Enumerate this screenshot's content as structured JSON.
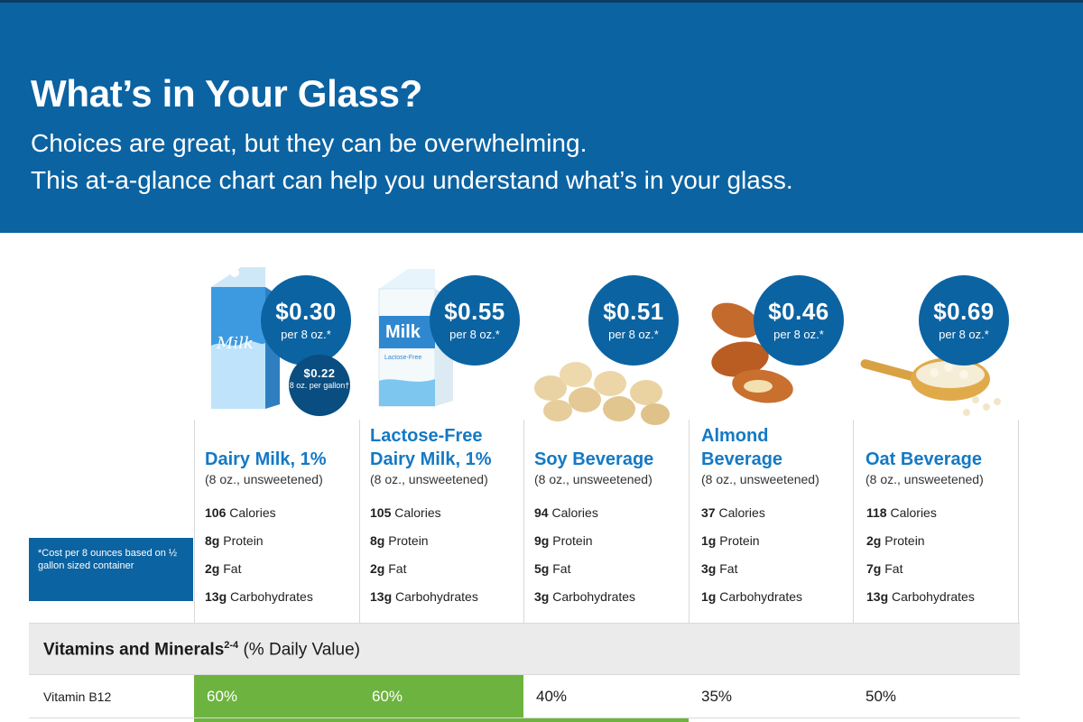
{
  "header": {
    "title": "What’s in Your Glass?",
    "subtitle_line1": "Choices are great, but they can be overwhelming.",
    "subtitle_line2": "This at-a-glance chart can help you understand what’s in your glass."
  },
  "cost_note": "*Cost per 8 ounces based on ½ gallon sized container",
  "colors": {
    "brand_blue": "#0b63a2",
    "highlight_green": "#6db33f",
    "name_blue": "#1479c4"
  },
  "columns": [
    {
      "name_line1": "Dairy Milk, 1%",
      "name_line2": "",
      "serving": "(8 oz., unsweetened)",
      "price": "$0.30",
      "per": "per 8 oz.*",
      "extra_price": "$0.22",
      "extra_per": "8 oz. per gallon†",
      "calories": "106",
      "protein": "8g",
      "fat": "2g",
      "carbs": "13g",
      "icon": "milk-carton-icon"
    },
    {
      "name_line1": "Lactose-Free",
      "name_line2": "Dairy Milk, 1%",
      "serving": "(8 oz., unsweetened)",
      "price": "$0.55",
      "per": "per 8 oz.*",
      "calories": "105",
      "protein": "8g",
      "fat": "2g",
      "carbs": "13g",
      "icon": "lactose-free-carton-icon"
    },
    {
      "name_line1": "Soy Beverage",
      "name_line2": "",
      "serving": "(8 oz., unsweetened)",
      "price": "$0.51",
      "per": "per 8 oz.*",
      "calories": "94",
      "protein": "9g",
      "fat": "5g",
      "carbs": "3g",
      "icon": "soybeans-icon"
    },
    {
      "name_line1": "Almond",
      "name_line2": "Beverage",
      "serving": "(8 oz., unsweetened)",
      "price": "$0.46",
      "per": "per 8 oz.*",
      "calories": "37",
      "protein": "1g",
      "fat": "3g",
      "carbs": "1g",
      "icon": "almonds-icon"
    },
    {
      "name_line1": "Oat Beverage",
      "name_line2": "",
      "serving": "(8 oz., unsweetened)",
      "price": "$0.69",
      "per": "per 8 oz.*",
      "calories": "118",
      "protein": "2g",
      "fat": "7g",
      "carbs": "13g",
      "icon": "oats-scoop-icon"
    }
  ],
  "labels": {
    "calories": "Calories",
    "protein": "Protein",
    "fat": "Fat",
    "carbs": "Carbohydrates"
  },
  "vitamins": {
    "title": "Vitamins and Minerals",
    "title_sup": "2-4",
    "title_suffix": "(% Daily Value)",
    "rows": [
      {
        "label": "Vitamin B12",
        "values": [
          "60%",
          "60%",
          "40%",
          "35%",
          "50%"
        ],
        "highlight": [
          true,
          true,
          false,
          false,
          false
        ]
      }
    ]
  }
}
